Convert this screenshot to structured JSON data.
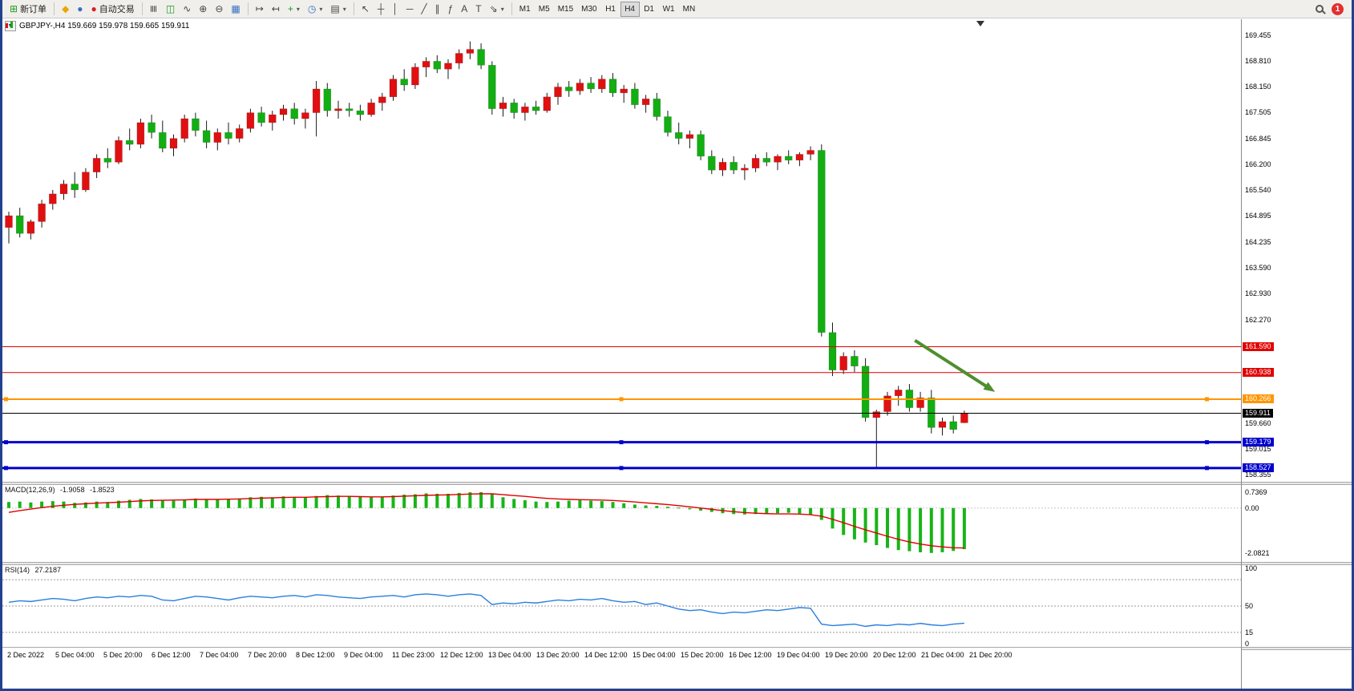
{
  "toolbar": {
    "new_order": "新订单",
    "auto_trading": "自动交易",
    "timeframes": [
      "M1",
      "M5",
      "M15",
      "M30",
      "H1",
      "H4",
      "D1",
      "W1",
      "MN"
    ],
    "active_timeframe": "H4",
    "notification": "1"
  },
  "icons": {
    "new_order": "⊞",
    "mql": "◆",
    "market": "●",
    "auto_trading": "●",
    "bar_chart": "≣",
    "candle_chart": "◫",
    "line_chart": "∿",
    "zoom_in": "⊕",
    "zoom_out": "⊖",
    "tile_windows": "▦",
    "auto_scroll": "↦",
    "chart_shift": "↤",
    "indicators": "+",
    "periods": "◷",
    "templates": "▤",
    "cursor": "↖",
    "crosshair": "┼",
    "vline": "│",
    "hline": "─",
    "trendline": "╱",
    "channel": "∥",
    "fibonacci": "ƒ",
    "text": "A",
    "label": "T",
    "arrows": "⇘",
    "caret": "▾",
    "search": "magnifier-css-shape"
  },
  "chart": {
    "title": "GBPJPY-,H4 159.669 159.978 159.665 159.911",
    "symbol": "GBPJPY-",
    "timeframe": "H4",
    "ohlc": {
      "open": "159.669",
      "high": "159.978",
      "low": "159.665",
      "close": "159.911"
    }
  },
  "indicators": {
    "macd": {
      "label": "MACD(12,26,9)",
      "main": "-1.9058",
      "signal": "-1.8523"
    },
    "rsi": {
      "label": "RSI(14)",
      "value": "27.2187"
    }
  },
  "chart_data": {
    "type": "candlestick",
    "symbol": "GBPJPY-",
    "period": "H4",
    "ylim": [
      158.18,
      169.86
    ],
    "colors": {
      "up": "#e01010",
      "down": "#12ae12",
      "wick": "#1a1a1a",
      "macd_hist": "#18b418",
      "macd_signal": "#e00000",
      "rsi_line": "#2a7fde",
      "arrow": "#4e8f2f"
    },
    "price_ticks": [
      "169.455",
      "168.810",
      "168.150",
      "167.505",
      "166.845",
      "166.200",
      "165.540",
      "164.895",
      "164.235",
      "163.590",
      "162.930",
      "162.270",
      "159.660",
      "159.015",
      "158.355"
    ],
    "hlines": [
      {
        "price": 161.59,
        "label": "161.590",
        "color": "#e00000",
        "width": 1,
        "handles": false
      },
      {
        "price": 160.938,
        "label": "160.938",
        "color": "#e00000",
        "width": 1,
        "handles": false
      },
      {
        "price": 160.266,
        "label": "160.266",
        "color": "#ff9500",
        "width": 2,
        "handles": true
      },
      {
        "price": 159.911,
        "label": "159.911",
        "color": "#000000",
        "width": 1,
        "handles": false
      },
      {
        "price": 159.179,
        "label": "159.179",
        "color": "#0000cc",
        "width": 3,
        "handles": true
      },
      {
        "price": 158.527,
        "label": "158.527",
        "color": "#0000cc",
        "width": 3,
        "handles": true
      }
    ],
    "arrow": {
      "x1_index": 82.5,
      "price1": 161.75,
      "x2_index": 89.8,
      "price2": 160.45
    },
    "time_labels": [
      "2 Dec 2022",
      "5 Dec 04:00",
      "5 Dec 20:00",
      "6 Dec 12:00",
      "7 Dec 04:00",
      "7 Dec 20:00",
      "8 Dec 12:00",
      "9 Dec 04:00",
      "11 Dec 23:00",
      "12 Dec 12:00",
      "13 Dec 04:00",
      "13 Dec 20:00",
      "14 Dec 12:00",
      "15 Dec 04:00",
      "15 Dec 20:00",
      "16 Dec 12:00",
      "19 Dec 04:00",
      "19 Dec 20:00",
      "20 Dec 12:00",
      "21 Dec 04:00",
      "21 Dec 20:00"
    ],
    "candles": [
      [
        164.6,
        165.0,
        164.2,
        164.9
      ],
      [
        164.9,
        165.1,
        164.35,
        164.45
      ],
      [
        164.45,
        164.8,
        164.3,
        164.75
      ],
      [
        164.75,
        165.3,
        164.6,
        165.2
      ],
      [
        165.2,
        165.55,
        165.05,
        165.45
      ],
      [
        165.45,
        165.8,
        165.3,
        165.7
      ],
      [
        165.7,
        166.0,
        165.35,
        165.55
      ],
      [
        165.55,
        166.1,
        165.5,
        166.0
      ],
      [
        166.0,
        166.45,
        165.85,
        166.35
      ],
      [
        166.35,
        166.6,
        166.1,
        166.25
      ],
      [
        166.25,
        166.9,
        166.2,
        166.8
      ],
      [
        166.8,
        167.1,
        166.55,
        166.7
      ],
      [
        166.7,
        167.35,
        166.6,
        167.25
      ],
      [
        167.25,
        167.45,
        166.85,
        167.0
      ],
      [
        167.0,
        167.3,
        166.5,
        166.6
      ],
      [
        166.6,
        166.95,
        166.4,
        166.85
      ],
      [
        166.85,
        167.45,
        166.75,
        167.35
      ],
      [
        167.35,
        167.5,
        166.9,
        167.05
      ],
      [
        167.05,
        167.3,
        166.6,
        166.75
      ],
      [
        166.75,
        167.1,
        166.55,
        167.0
      ],
      [
        167.0,
        167.25,
        166.7,
        166.85
      ],
      [
        166.85,
        167.2,
        166.75,
        167.1
      ],
      [
        167.1,
        167.6,
        167.0,
        167.5
      ],
      [
        167.5,
        167.65,
        167.15,
        167.25
      ],
      [
        167.25,
        167.55,
        167.05,
        167.45
      ],
      [
        167.45,
        167.7,
        167.3,
        167.6
      ],
      [
        167.6,
        167.75,
        167.2,
        167.35
      ],
      [
        167.35,
        167.6,
        167.1,
        167.5
      ],
      [
        167.5,
        168.3,
        166.9,
        168.1
      ],
      [
        168.1,
        168.25,
        167.4,
        167.55
      ],
      [
        167.55,
        167.8,
        167.35,
        167.6
      ],
      [
        167.6,
        167.75,
        167.4,
        167.55
      ],
      [
        167.55,
        167.7,
        167.3,
        167.45
      ],
      [
        167.45,
        167.85,
        167.4,
        167.75
      ],
      [
        167.75,
        168.0,
        167.55,
        167.9
      ],
      [
        167.9,
        168.45,
        167.8,
        168.35
      ],
      [
        168.35,
        168.6,
        168.05,
        168.2
      ],
      [
        168.2,
        168.75,
        168.1,
        168.65
      ],
      [
        168.65,
        168.9,
        168.4,
        168.8
      ],
      [
        168.8,
        168.95,
        168.5,
        168.6
      ],
      [
        168.6,
        168.85,
        168.35,
        168.75
      ],
      [
        168.75,
        169.1,
        168.6,
        169.0
      ],
      [
        169.0,
        169.3,
        168.85,
        169.1
      ],
      [
        169.1,
        169.25,
        168.6,
        168.7
      ],
      [
        168.7,
        168.8,
        167.45,
        167.6
      ],
      [
        167.6,
        167.9,
        167.4,
        167.75
      ],
      [
        167.75,
        167.85,
        167.35,
        167.5
      ],
      [
        167.5,
        167.75,
        167.3,
        167.65
      ],
      [
        167.65,
        167.8,
        167.45,
        167.55
      ],
      [
        167.55,
        168.0,
        167.5,
        167.9
      ],
      [
        167.9,
        168.25,
        167.7,
        168.15
      ],
      [
        168.15,
        168.3,
        167.9,
        168.05
      ],
      [
        168.05,
        168.35,
        167.95,
        168.25
      ],
      [
        168.25,
        168.4,
        168.0,
        168.1
      ],
      [
        168.1,
        168.45,
        168.0,
        168.35
      ],
      [
        168.35,
        168.5,
        167.9,
        168.0
      ],
      [
        168.0,
        168.2,
        167.75,
        168.1
      ],
      [
        168.1,
        168.25,
        167.6,
        167.7
      ],
      [
        167.7,
        167.95,
        167.5,
        167.85
      ],
      [
        167.85,
        168.0,
        167.3,
        167.4
      ],
      [
        167.4,
        167.55,
        166.9,
        167.0
      ],
      [
        167.0,
        167.25,
        166.7,
        166.85
      ],
      [
        166.85,
        167.05,
        166.6,
        166.95
      ],
      [
        166.95,
        167.05,
        166.3,
        166.4
      ],
      [
        166.4,
        166.55,
        165.95,
        166.05
      ],
      [
        166.05,
        166.35,
        165.9,
        166.25
      ],
      [
        166.25,
        166.4,
        165.95,
        166.05
      ],
      [
        166.05,
        166.2,
        165.8,
        166.1
      ],
      [
        166.1,
        166.45,
        166.0,
        166.35
      ],
      [
        166.35,
        166.5,
        166.15,
        166.25
      ],
      [
        166.25,
        166.45,
        166.05,
        166.4
      ],
      [
        166.4,
        166.55,
        166.2,
        166.3
      ],
      [
        166.3,
        166.5,
        166.15,
        166.45
      ],
      [
        166.45,
        166.65,
        166.3,
        166.55
      ],
      [
        166.55,
        166.7,
        161.85,
        161.95
      ],
      [
        161.95,
        162.2,
        160.85,
        161.0
      ],
      [
        161.0,
        161.45,
        160.9,
        161.35
      ],
      [
        161.35,
        161.5,
        160.95,
        161.1
      ],
      [
        161.1,
        161.3,
        159.7,
        159.8
      ],
      [
        159.8,
        160.0,
        158.55,
        159.95
      ],
      [
        159.95,
        160.45,
        159.85,
        160.35
      ],
      [
        160.35,
        160.6,
        160.1,
        160.5
      ],
      [
        160.5,
        160.65,
        159.95,
        160.05
      ],
      [
        160.05,
        160.45,
        159.95,
        160.3
      ],
      [
        160.3,
        160.5,
        159.4,
        159.55
      ],
      [
        159.55,
        159.8,
        159.35,
        159.7
      ],
      [
        159.7,
        159.85,
        159.4,
        159.5
      ],
      [
        159.669,
        159.978,
        159.665,
        159.911
      ]
    ],
    "macd": {
      "ylim": [
        -2.35,
        0.92
      ],
      "axis": [
        {
          "text": "0.7369",
          "v": 0.7369
        },
        {
          "text": "0.00",
          "v": 0
        },
        {
          "text": "-2.0821",
          "v": -2.0821
        }
      ],
      "histogram": [
        0.28,
        0.3,
        0.26,
        0.3,
        0.32,
        0.3,
        0.24,
        0.26,
        0.3,
        0.28,
        0.34,
        0.38,
        0.42,
        0.4,
        0.36,
        0.34,
        0.4,
        0.44,
        0.4,
        0.38,
        0.4,
        0.44,
        0.5,
        0.52,
        0.5,
        0.54,
        0.52,
        0.5,
        0.56,
        0.6,
        0.58,
        0.55,
        0.52,
        0.5,
        0.52,
        0.58,
        0.62,
        0.64,
        0.68,
        0.66,
        0.66,
        0.7,
        0.73,
        0.737,
        0.68,
        0.5,
        0.42,
        0.36,
        0.3,
        0.28,
        0.3,
        0.34,
        0.36,
        0.34,
        0.32,
        0.28,
        0.22,
        0.16,
        0.12,
        0.1,
        0.06,
        0.02,
        -0.06,
        -0.12,
        -0.18,
        -0.24,
        -0.28,
        -0.3,
        -0.28,
        -0.26,
        -0.24,
        -0.22,
        -0.25,
        -0.3,
        -0.55,
        -0.95,
        -1.25,
        -1.45,
        -1.6,
        -1.72,
        -1.85,
        -1.95,
        -2.0,
        -2.05,
        -2.082,
        -2.05,
        -1.99,
        -1.906
      ],
      "signal": [
        -0.2,
        -0.12,
        -0.05,
        0.02,
        0.08,
        0.13,
        0.17,
        0.2,
        0.23,
        0.25,
        0.27,
        0.3,
        0.33,
        0.35,
        0.36,
        0.37,
        0.38,
        0.4,
        0.4,
        0.4,
        0.41,
        0.42,
        0.44,
        0.46,
        0.47,
        0.49,
        0.5,
        0.5,
        0.52,
        0.53,
        0.54,
        0.54,
        0.53,
        0.52,
        0.52,
        0.53,
        0.55,
        0.57,
        0.59,
        0.6,
        0.61,
        0.63,
        0.65,
        0.66,
        0.66,
        0.62,
        0.58,
        0.54,
        0.49,
        0.45,
        0.42,
        0.4,
        0.39,
        0.38,
        0.37,
        0.35,
        0.32,
        0.28,
        0.24,
        0.2,
        0.16,
        0.11,
        0.06,
        0.0,
        -0.06,
        -0.12,
        -0.17,
        -0.21,
        -0.24,
        -0.26,
        -0.27,
        -0.27,
        -0.28,
        -0.31,
        -0.38,
        -0.52,
        -0.68,
        -0.85,
        -1.01,
        -1.16,
        -1.31,
        -1.45,
        -1.57,
        -1.67,
        -1.75,
        -1.8,
        -1.84,
        -1.852
      ]
    },
    "rsi": {
      "levels": [
        85,
        50,
        15
      ],
      "axis": [
        {
          "text": "100",
          "v": 100
        },
        {
          "text": "50",
          "v": 50
        },
        {
          "text": "15",
          "v": 15
        },
        {
          "text": "0",
          "v": 0
        }
      ],
      "values": [
        55,
        57,
        56,
        58,
        60,
        59,
        57,
        60,
        62,
        61,
        63,
        62,
        64,
        63,
        58,
        57,
        60,
        63,
        62,
        60,
        58,
        61,
        63,
        62,
        61,
        63,
        64,
        62,
        65,
        64,
        62,
        61,
        60,
        62,
        63,
        64,
        62,
        65,
        66,
        65,
        63,
        65,
        66,
        64,
        52,
        54,
        53,
        55,
        54,
        56,
        58,
        57,
        59,
        58,
        60,
        57,
        55,
        56,
        52,
        54,
        50,
        46,
        44,
        45,
        42,
        40,
        42,
        41,
        43,
        45,
        44,
        46,
        48,
        47,
        26,
        24,
        25,
        26,
        23,
        25,
        24,
        26,
        25,
        27,
        25,
        24,
        26,
        27.2
      ]
    }
  }
}
